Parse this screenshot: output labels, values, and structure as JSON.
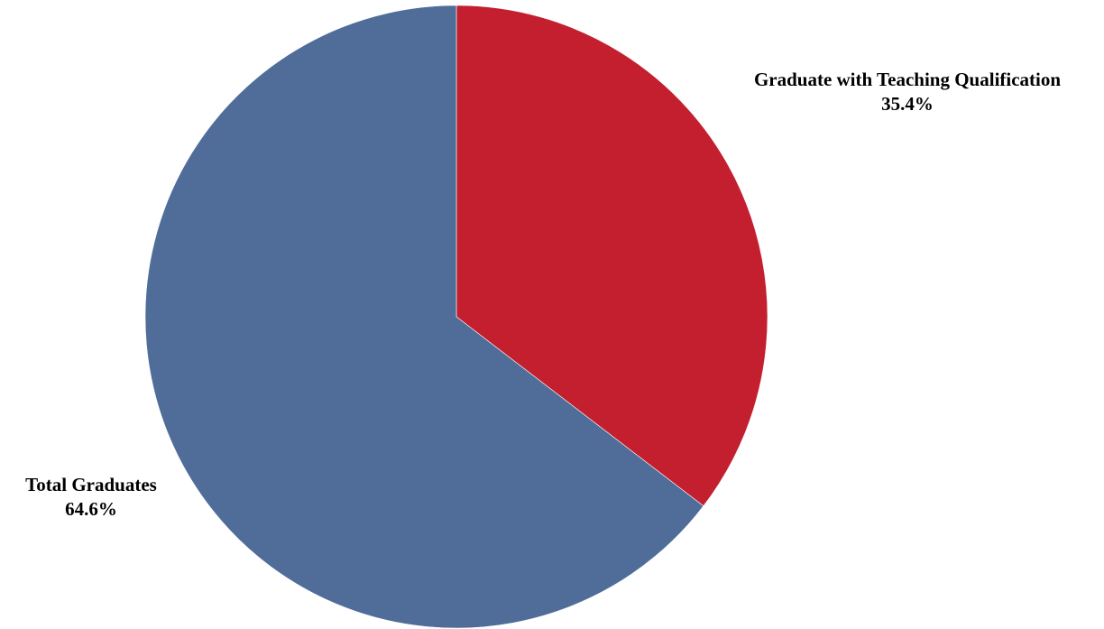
{
  "chart_data": {
    "type": "pie",
    "title": "",
    "start_angle_deg": 0,
    "direction": "clockwise",
    "legend": "none",
    "slices": [
      {
        "name": "Graduate with Teaching Qualification",
        "value": 35.4,
        "value_label": "35.4%",
        "color": "#c41f2f"
      },
      {
        "name": "Total Graduates",
        "value": 64.6,
        "value_label": "64.6%",
        "color": "#4f6d98"
      }
    ]
  }
}
